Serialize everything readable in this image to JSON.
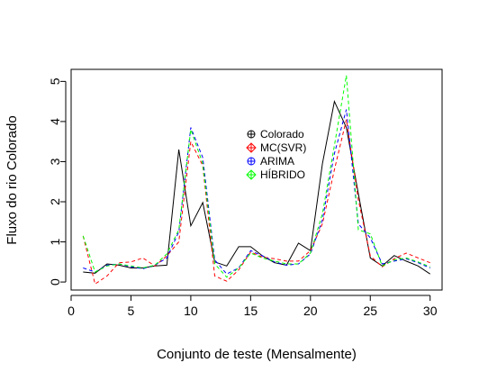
{
  "chart_data": {
    "type": "line",
    "title": "",
    "xlabel": "Conjunto de teste (Mensalmente)",
    "ylabel": "Fluxo do rio Colorado",
    "xlim": [
      0,
      31
    ],
    "ylim": [
      -0.2,
      5.3
    ],
    "x_ticks": [
      0,
      5,
      10,
      15,
      20,
      25,
      30
    ],
    "y_ticks": [
      0,
      1,
      2,
      3,
      4,
      5
    ],
    "grid": false,
    "legend_position": "center",
    "x": [
      1,
      2,
      3,
      4,
      5,
      6,
      7,
      8,
      9,
      10,
      11,
      12,
      13,
      14,
      15,
      16,
      17,
      18,
      19,
      20,
      21,
      22,
      23,
      24,
      25,
      26,
      27,
      28,
      29,
      30
    ],
    "series": [
      {
        "name": "Colorado",
        "color": "#000000",
        "style": "solid",
        "marker": "circle-plus",
        "values": [
          0.25,
          0.22,
          0.45,
          0.42,
          0.35,
          0.35,
          0.4,
          0.42,
          3.3,
          1.4,
          1.98,
          0.5,
          0.4,
          0.88,
          0.88,
          0.65,
          0.48,
          0.42,
          0.97,
          0.78,
          2.95,
          4.5,
          3.85,
          2.2,
          0.6,
          0.4,
          0.66,
          0.52,
          0.4,
          0.2
        ]
      },
      {
        "name": "MC(SVR)",
        "color": "#ff0000",
        "style": "dashed",
        "marker": "diamond-plus",
        "values": [
          1.15,
          -0.05,
          0.15,
          0.48,
          0.5,
          0.6,
          0.4,
          0.65,
          1.0,
          3.5,
          2.9,
          0.15,
          0.02,
          0.3,
          0.75,
          0.62,
          0.58,
          0.52,
          0.52,
          0.78,
          1.45,
          2.8,
          4.05,
          2.05,
          0.65,
          0.38,
          0.58,
          0.72,
          0.6,
          0.48
        ]
      },
      {
        "name": "ARIMA",
        "color": "#0000ff",
        "style": "dashed",
        "marker": "circle-plus",
        "values": [
          0.35,
          0.25,
          0.42,
          0.45,
          0.38,
          0.33,
          0.42,
          0.6,
          1.25,
          3.85,
          3.1,
          0.55,
          0.2,
          0.35,
          0.78,
          0.65,
          0.5,
          0.42,
          0.45,
          0.7,
          1.55,
          3.2,
          4.3,
          1.45,
          1.1,
          0.45,
          0.52,
          0.58,
          0.48,
          0.35
        ]
      },
      {
        "name": "HÍBRIDO",
        "color": "#00ff00",
        "style": "dashed",
        "marker": "diamond-plus",
        "values": [
          1.15,
          0.25,
          0.4,
          0.45,
          0.4,
          0.35,
          0.42,
          0.7,
          1.3,
          3.8,
          2.95,
          0.45,
          0.12,
          0.35,
          0.72,
          0.6,
          0.52,
          0.45,
          0.45,
          0.72,
          1.7,
          3.4,
          5.15,
          1.3,
          1.2,
          0.4,
          0.55,
          0.6,
          0.5,
          0.38
        ]
      }
    ]
  }
}
